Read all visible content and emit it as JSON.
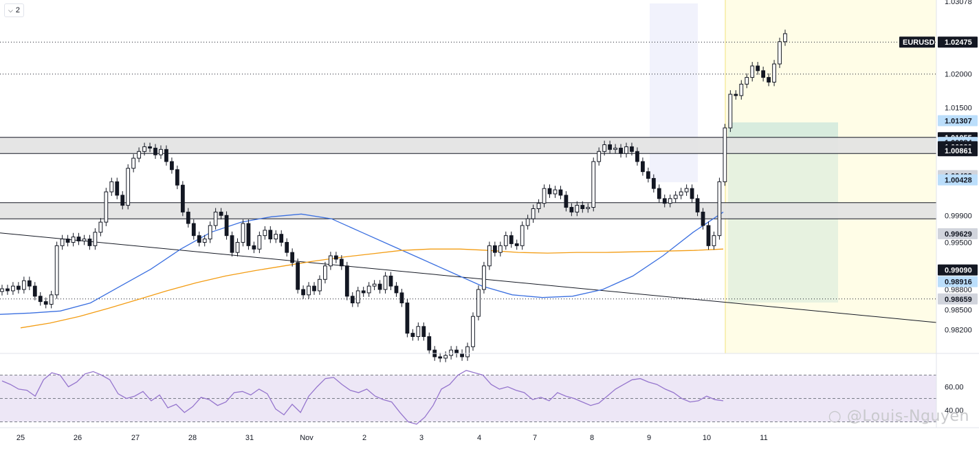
{
  "toolbar": {
    "collapse_icon": "chevron-down-icon",
    "collapse_count": "2"
  },
  "watermark": {
    "text": "@Louis-Nguyen",
    "icon": "weibo-icon"
  },
  "colors": {
    "candle": "#131722",
    "ma_blue": "#3a6fe0",
    "ma_orange": "#f39c12",
    "rsi": "#9575cd",
    "rsi_band": "#ede7f6",
    "highlight": "#fffde7",
    "zone": "#e2e2e2",
    "long_box": "#c9e4d6"
  },
  "chart_data": {
    "type": "candlestick",
    "symbol": "EURUSD",
    "last_price": "1.02475",
    "ylim": [
      0.9785,
      1.031
    ],
    "x_ticks": [
      "25",
      "26",
      "27",
      "28",
      "31",
      "Nov",
      "2",
      "3",
      "4",
      "7",
      "8",
      "9",
      "10",
      "11"
    ],
    "price_axis_labels": [
      "1.03078",
      "1.02000",
      "1.01500",
      "0.99900",
      "0.99500",
      "0.98800",
      "0.98500",
      "0.98200"
    ],
    "price_tags": [
      {
        "value": "1.02475",
        "style": "symbol"
      },
      {
        "value": "1.01307",
        "style": "blue"
      },
      {
        "value": "1.01055",
        "style": "dark"
      },
      {
        "value": "1.00984",
        "style": "blue"
      },
      {
        "value": "1.00920",
        "style": "dark"
      },
      {
        "value": "1.00861",
        "style": "dark"
      },
      {
        "value": "1.00492",
        "style": "grey"
      },
      {
        "value": "1.00428",
        "style": "blue"
      },
      {
        "value": "0.99629",
        "style": "grey"
      },
      {
        "value": "0.99090",
        "style": "dark"
      },
      {
        "value": "0.98916",
        "style": "blue"
      },
      {
        "value": "0.98659",
        "style": "grey"
      }
    ],
    "resistance_zones": [
      {
        "from": 1.0082,
        "to": 1.0106
      },
      {
        "from": 0.9985,
        "to": 1.0009
      }
    ],
    "dotted_levels": [
      1.02475,
      1.02,
      0.98659
    ],
    "trendline": {
      "from": [
        0,
        0.9964
      ],
      "to": [
        1,
        0.9831
      ]
    },
    "candles_close": [
      0.9881,
      0.9878,
      0.9885,
      0.988,
      0.9893,
      0.9885,
      0.987,
      0.9862,
      0.9858,
      0.9872,
      0.9945,
      0.9955,
      0.995,
      0.9958,
      0.9952,
      0.9955,
      0.9945,
      0.9965,
      0.998,
      1.0025,
      1.004,
      1.002,
      1.0005,
      1.006,
      1.0075,
      1.0085,
      1.0092,
      1.009,
      1.008,
      1.0088,
      1.007,
      1.0058,
      1.0035,
      0.9995,
      0.9978,
      0.996,
      0.995,
      0.9955,
      0.9975,
      0.9995,
      0.999,
      0.996,
      0.9935,
      0.995,
      0.9978,
      0.9945,
      0.994,
      0.996,
      0.9968,
      0.9955,
      0.9962,
      0.995,
      0.9935,
      0.992,
      0.988,
      0.9872,
      0.9885,
      0.9878,
      0.9895,
      0.9915,
      0.993,
      0.9925,
      0.9915,
      0.987,
      0.986,
      0.9878,
      0.9875,
      0.9885,
      0.9888,
      0.988,
      0.99,
      0.9885,
      0.9875,
      0.986,
      0.9815,
      0.981,
      0.9825,
      0.981,
      0.979,
      0.978,
      0.9778,
      0.9782,
      0.979,
      0.9785,
      0.978,
      0.9795,
      0.984,
      0.988,
      0.9915,
      0.9945,
      0.9935,
      0.9945,
      0.996,
      0.9948,
      0.9945,
      0.9975,
      0.9985,
      1.0,
      1.0008,
      1.003,
      1.0022,
      1.0028,
      1.002,
      1.0002,
      0.9995,
      1.0005,
      1.0,
      1.0002,
      1.007,
      1.0085,
      1.0095,
      1.0088,
      1.009,
      1.0082,
      1.0092,
      1.0085,
      1.007,
      1.0055,
      1.0045,
      1.003,
      1.0015,
      1.0008,
      1.0015,
      1.002,
      1.0025,
      1.003,
      1.0015,
      0.9995,
      0.9975,
      0.9945,
      0.996,
      1.004,
      1.012,
      1.017,
      1.0168,
      1.0185,
      1.0195,
      1.0212,
      1.0205,
      1.0195,
      1.0188,
      1.0215,
      1.0248,
      1.026
    ],
    "ma_blue": [
      0.9843,
      0.9845,
      0.9848,
      0.986,
      0.9885,
      0.991,
      0.994,
      0.9965,
      0.998,
      0.9988,
      0.9992,
      0.9985,
      0.9965,
      0.9945,
      0.9925,
      0.9905,
      0.9885,
      0.9872,
      0.9868,
      0.987,
      0.988,
      0.99,
      0.993,
      0.9965,
      0.9995
    ],
    "ma_orange": [
      0.9823,
      0.983,
      0.984,
      0.9852,
      0.9865,
      0.9878,
      0.989,
      0.99,
      0.9908,
      0.9915,
      0.9922,
      0.9928,
      0.9933,
      0.9938,
      0.994,
      0.994,
      0.9938,
      0.9935,
      0.9934,
      0.9935,
      0.9935,
      0.9936,
      0.9937,
      0.9938,
      0.994
    ],
    "rsi_ticks": [
      "60.00",
      "40.00"
    ],
    "rsi": [
      65,
      62,
      58,
      57,
      52,
      66,
      72,
      70,
      60,
      64,
      71,
      73,
      70,
      66,
      54,
      50,
      52,
      56,
      48,
      53,
      42,
      45,
      38,
      43,
      51,
      49,
      44,
      47,
      55,
      56,
      53,
      58,
      54,
      41,
      36,
      45,
      38,
      52,
      60,
      67,
      68,
      62,
      57,
      55,
      58,
      52,
      49,
      47,
      38,
      30,
      28,
      34,
      44,
      58,
      62,
      70,
      74,
      72,
      70,
      62,
      58,
      60,
      57,
      55,
      49,
      51,
      48,
      55,
      52,
      50,
      47,
      44,
      46,
      52,
      58,
      62,
      66,
      67,
      64,
      62,
      58,
      55,
      50,
      47,
      48,
      52,
      49,
      48
    ]
  }
}
